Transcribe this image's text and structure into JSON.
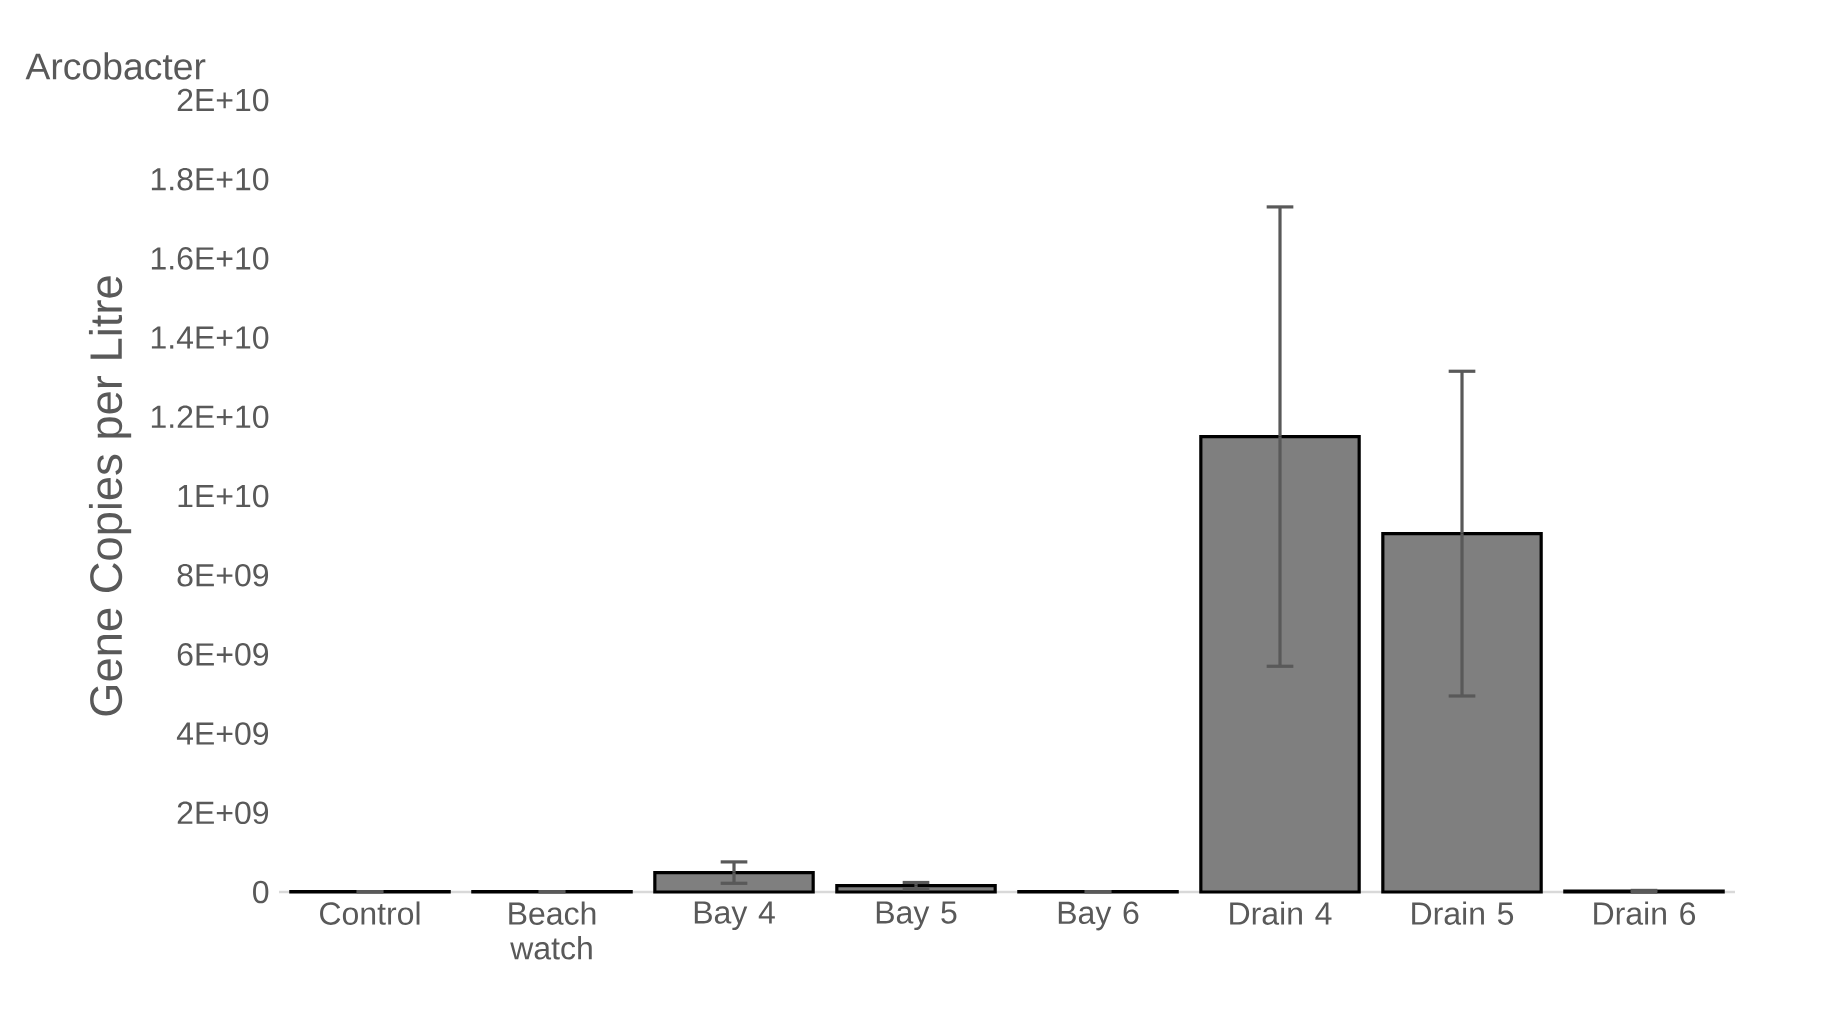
{
  "chart_data": {
    "type": "bar",
    "title": "Arcobacter",
    "ylabel": "Gene Copies per Litre",
    "categories": [
      "Control",
      "Beach watch",
      "Bay 4",
      "Bay 5",
      "Bay 6",
      "Drain 4",
      "Drain 5",
      "Drain 6"
    ],
    "values": [
      10000000,
      10000000,
      490000000,
      160000000,
      10000000,
      11500000000,
      9050000000,
      20000000
    ],
    "errors": [
      null,
      null,
      270000000,
      80000000,
      null,
      5800000000,
      4100000000,
      20000000
    ],
    "color": "#7f7f7f",
    "ylim": [
      0,
      20000000000
    ],
    "yticks": [
      0,
      {
        "value": 2000000000,
        "label": "2E+09"
      },
      {
        "value": 4000000000,
        "label": "4E+09"
      },
      {
        "value": 6000000000,
        "label": "6E+09"
      },
      {
        "value": 8000000000,
        "label": "8E+09"
      },
      {
        "value": 10000000000,
        "label": "1E+10"
      },
      {
        "value": 12000000000,
        "label": "1.2E+10"
      },
      {
        "value": 14000000000,
        "label": "1.4E+10"
      },
      {
        "value": 16000000000,
        "label": "1.6E+10"
      },
      {
        "value": 18000000000,
        "label": "1.8E+10"
      },
      {
        "value": 20000000000,
        "label": "2E+10"
      }
    ]
  }
}
